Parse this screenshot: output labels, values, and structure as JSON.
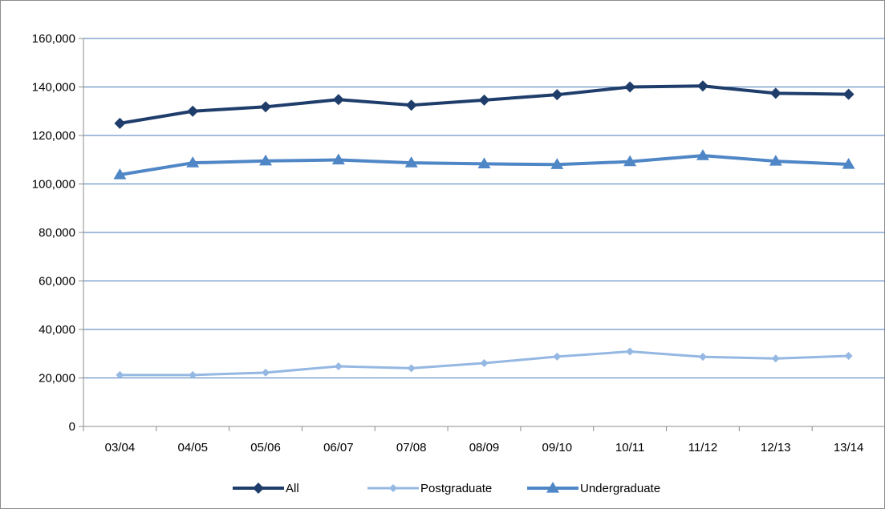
{
  "chart_data": {
    "type": "line",
    "categories": [
      "03/04",
      "04/05",
      "05/06",
      "06/07",
      "07/08",
      "08/09",
      "09/10",
      "10/11",
      "11/12",
      "12/13",
      "13/14"
    ],
    "series": [
      {
        "name": "All",
        "color": "#1f3d6b",
        "marker": "diamond",
        "values": [
          125000,
          130000,
          131800,
          134800,
          132500,
          134600,
          136800,
          140000,
          140400,
          137400,
          137000
        ]
      },
      {
        "name": "Postgraduate",
        "color": "#95b8e3",
        "marker": "diamond-small",
        "values": [
          21200,
          21200,
          22200,
          24800,
          24000,
          26100,
          28800,
          30900,
          28700,
          28000,
          29100
        ]
      },
      {
        "name": "Undergraduate",
        "color": "#4f86c6",
        "marker": "triangle",
        "values": [
          103800,
          108700,
          109500,
          109900,
          108700,
          108300,
          108000,
          109200,
          111700,
          109400,
          108100
        ]
      }
    ],
    "ylim": [
      0,
      160000
    ],
    "yticks": [
      0,
      20000,
      40000,
      60000,
      80000,
      100000,
      120000,
      140000,
      160000
    ],
    "ytick_labels": [
      "0",
      "20,000",
      "40,000",
      "60,000",
      "80,000",
      "100,000",
      "120,000",
      "140,000",
      "160,000"
    ],
    "grid": "horizontal",
    "legend_position": "bottom",
    "title": "",
    "xlabel": "",
    "ylabel": ""
  }
}
